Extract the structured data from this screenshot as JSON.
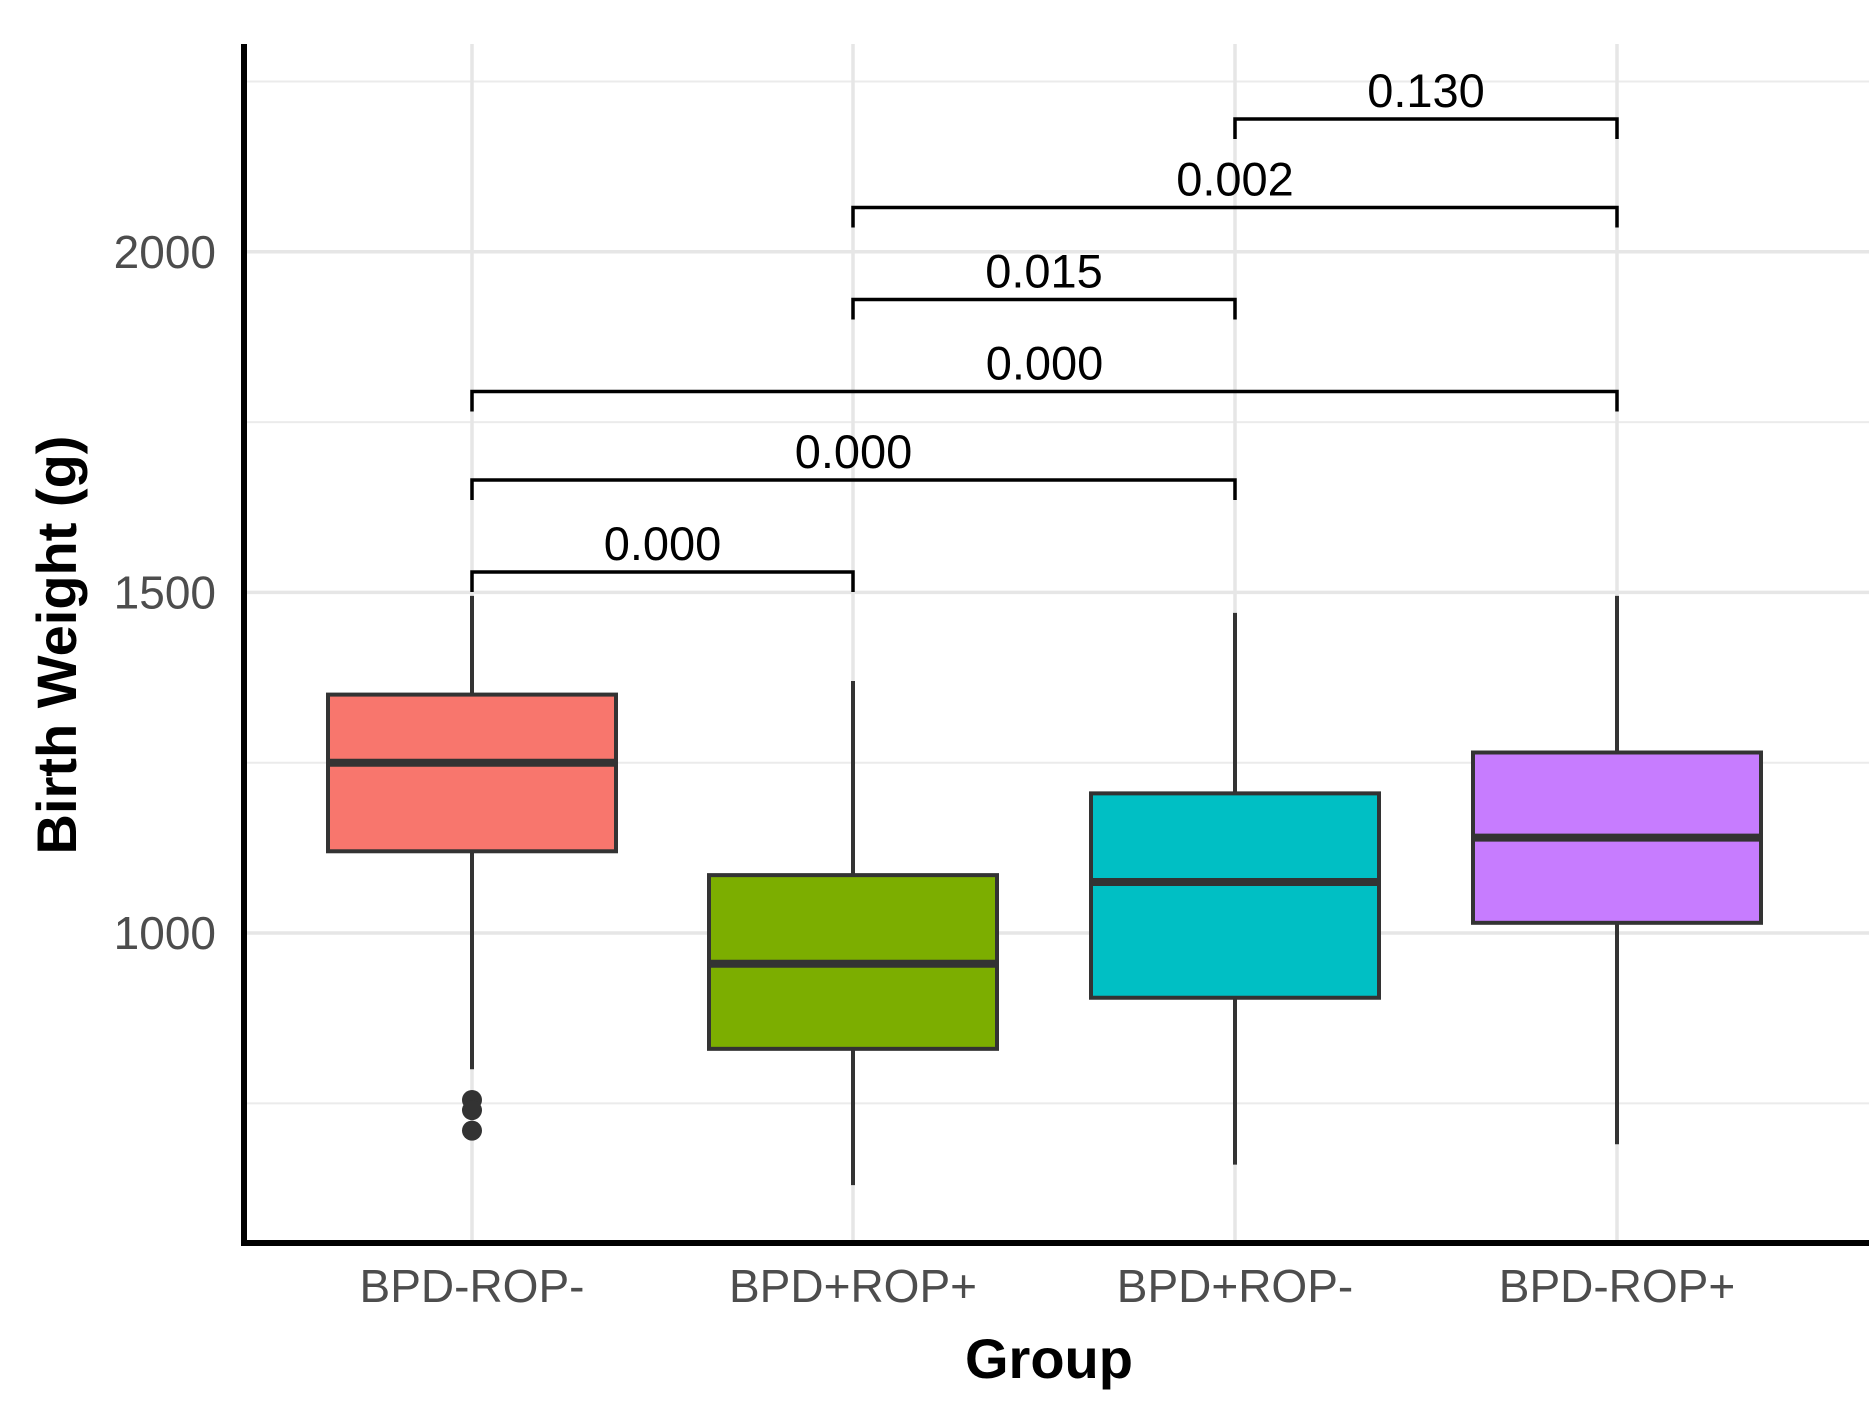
{
  "chart_data": {
    "type": "box",
    "xlabel": "Group",
    "ylabel": "Birth Weight (g)",
    "ylim": [
      545,
      2305
    ],
    "yticks": [
      1000,
      1500,
      2000
    ],
    "y_minor_gridlines": [
      750,
      1250,
      1750,
      2250
    ],
    "grid": true,
    "categories": [
      "BPD-ROP-",
      "BPD+ROP+",
      "BPD+ROP-",
      "BPD-ROP+"
    ],
    "colors": [
      "#F8766D",
      "#7CAE00",
      "#00BFC4",
      "#C77CFF"
    ],
    "boxes": [
      {
        "group": "BPD-ROP-",
        "whisker_low": 800,
        "q1": 1120,
        "median": 1250,
        "q3": 1350,
        "whisker_high": 1495,
        "outliers": [
          755,
          740,
          710
        ]
      },
      {
        "group": "BPD+ROP+",
        "whisker_low": 630,
        "q1": 830,
        "median": 955,
        "q3": 1085,
        "whisker_high": 1370,
        "outliers": []
      },
      {
        "group": "BPD+ROP-",
        "whisker_low": 660,
        "q1": 905,
        "median": 1075,
        "q3": 1205,
        "whisker_high": 1470,
        "outliers": []
      },
      {
        "group": "BPD-ROP+",
        "whisker_low": 690,
        "q1": 1015,
        "median": 1140,
        "q3": 1265,
        "whisker_high": 1495,
        "outliers": []
      }
    ],
    "comparisons": [
      {
        "from": 0,
        "to": 1,
        "label": "0.000",
        "y": 1530
      },
      {
        "from": 0,
        "to": 2,
        "label": "0.000",
        "y": 1665
      },
      {
        "from": 0,
        "to": 3,
        "label": "0.000",
        "y": 1795
      },
      {
        "from": 1,
        "to": 2,
        "label": "0.015",
        "y": 1930
      },
      {
        "from": 1,
        "to": 3,
        "label": "0.002",
        "y": 2065
      },
      {
        "from": 2,
        "to": 3,
        "label": "0.130",
        "y": 2195
      }
    ]
  }
}
